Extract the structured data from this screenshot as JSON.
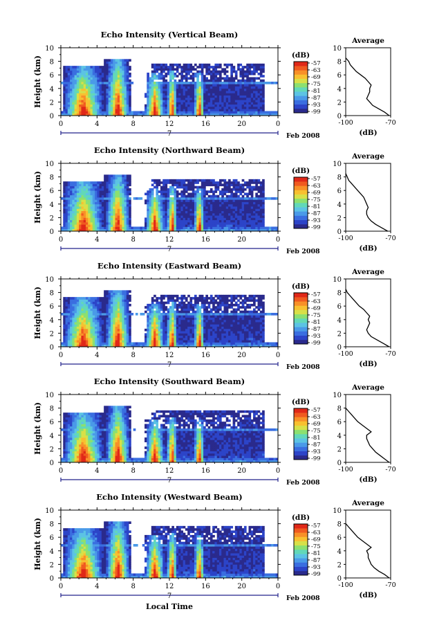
{
  "footer_label": "Local Time",
  "date_label": "Feb 2008",
  "day_label": "7",
  "colors": {
    "scale": [
      "#2a2a8c",
      "#2c44c8",
      "#3a6ee0",
      "#4a9ae8",
      "#5cc3e4",
      "#62d8b8",
      "#8ce070",
      "#d8e048",
      "#f8c030",
      "#f89028",
      "#f05a20",
      "#e02818"
    ]
  },
  "chart_data": [
    {
      "type": "heatmap",
      "title": "Echo Intensity (Vertical Beam)",
      "ylabel": "Height (km)",
      "ylim": [
        0,
        10
      ],
      "yticks": [
        "0",
        "2",
        "4",
        "6",
        "8",
        "10"
      ],
      "xlim": [
        0,
        24
      ],
      "xticks": [
        "0",
        "4",
        "8",
        "12",
        "16",
        "20",
        "0"
      ],
      "colorbar_label": "(dB)",
      "colorbar_ticks": [
        "-57",
        "-63",
        "-69",
        "-75",
        "-81",
        "-87",
        "-93",
        "-99"
      ],
      "profile": {
        "title": "Average",
        "xlabel": "(dB)",
        "xticks": [
          "-100",
          "-70"
        ],
        "xlim": [
          -100,
          -70
        ],
        "heights": [
          0,
          0.5,
          1,
          1.5,
          2,
          2.5,
          3,
          3.5,
          4,
          4.5,
          5,
          5.5,
          6,
          6.5,
          7,
          7.5,
          8,
          8.5
        ],
        "values": [
          -71,
          -74,
          -78,
          -82,
          -84,
          -86,
          -85,
          -84,
          -84,
          -83,
          -85,
          -87,
          -90,
          -93,
          -95,
          -97,
          -98,
          -100
        ]
      }
    },
    {
      "type": "heatmap",
      "title": "Echo Intensity (Northward Beam)",
      "ylabel": "Height (km)",
      "ylim": [
        0,
        10
      ],
      "yticks": [
        "0",
        "2",
        "4",
        "6",
        "8",
        "10"
      ],
      "xlim": [
        0,
        24
      ],
      "xticks": [
        "0",
        "4",
        "8",
        "12",
        "16",
        "20",
        "0"
      ],
      "colorbar_label": "(dB)",
      "colorbar_ticks": [
        "-57",
        "-63",
        "-69",
        "-75",
        "-81",
        "-87",
        "-93",
        "-99"
      ],
      "profile": {
        "title": "Average",
        "xlabel": "(dB)",
        "xticks": [
          "-100",
          "-70"
        ],
        "xlim": [
          -100,
          -70
        ],
        "heights": [
          0,
          0.5,
          1,
          1.5,
          2,
          2.5,
          3,
          3.5,
          4,
          4.5,
          5,
          5.5,
          6,
          6.5,
          7,
          7.5,
          8,
          8.5
        ],
        "values": [
          -72,
          -76,
          -80,
          -83,
          -85,
          -86,
          -86,
          -85,
          -86,
          -87,
          -88,
          -90,
          -92,
          -94,
          -96,
          -98,
          -99,
          -100
        ]
      }
    },
    {
      "type": "heatmap",
      "title": "Echo Intensity (Eastward Beam)",
      "ylabel": "Height (km)",
      "ylim": [
        0,
        10
      ],
      "yticks": [
        "0",
        "2",
        "4",
        "6",
        "8",
        "10"
      ],
      "xlim": [
        0,
        24
      ],
      "xticks": [
        "0",
        "4",
        "8",
        "12",
        "16",
        "20",
        "0"
      ],
      "colorbar_label": "(dB)",
      "colorbar_ticks": [
        "-57",
        "-63",
        "-69",
        "-75",
        "-81",
        "-87",
        "-93",
        "-99"
      ],
      "profile": {
        "title": "Average",
        "xlabel": "(dB)",
        "xticks": [
          "-100",
          "-70"
        ],
        "xlim": [
          -100,
          -70
        ],
        "heights": [
          0,
          0.5,
          1,
          1.5,
          2,
          2.5,
          3,
          3.5,
          4,
          4.5,
          5,
          5.5,
          6,
          6.5,
          7,
          7.5,
          8,
          8.5
        ],
        "values": [
          -71,
          -75,
          -79,
          -83,
          -85,
          -86,
          -85,
          -84,
          -85,
          -84,
          -86,
          -88,
          -91,
          -93,
          -95,
          -97,
          -99,
          -100
        ]
      }
    },
    {
      "type": "heatmap",
      "title": "Echo Intensity (Southward Beam)",
      "ylabel": "Height (km)",
      "ylim": [
        0,
        10
      ],
      "yticks": [
        "0",
        "2",
        "4",
        "6",
        "8",
        "10"
      ],
      "xlim": [
        0,
        24
      ],
      "xticks": [
        "0",
        "4",
        "8",
        "12",
        "16",
        "20",
        "0"
      ],
      "colorbar_label": "(dB)",
      "colorbar_ticks": [
        "-57",
        "-63",
        "-69",
        "-75",
        "-81",
        "-87",
        "-93",
        "-99"
      ],
      "profile": {
        "title": "Average",
        "xlabel": "(dB)",
        "xticks": [
          "-100",
          "-70"
        ],
        "xlim": [
          -100,
          -70
        ],
        "heights": [
          0,
          0.5,
          1,
          1.5,
          2,
          2.5,
          3,
          3.5,
          4,
          4.5,
          5,
          5.5,
          6,
          6.5,
          7,
          7.5,
          8
        ],
        "values": [
          -71,
          -74,
          -77,
          -80,
          -82,
          -84,
          -85,
          -86,
          -86,
          -83,
          -86,
          -89,
          -92,
          -94,
          -96,
          -98,
          -100
        ]
      }
    },
    {
      "type": "heatmap",
      "title": "Echo Intensity (Westward Beam)",
      "ylabel": "Height (km)",
      "ylim": [
        0,
        10
      ],
      "yticks": [
        "0",
        "2",
        "4",
        "6",
        "8",
        "10"
      ],
      "xlim": [
        0,
        24
      ],
      "xticks": [
        "0",
        "4",
        "8",
        "12",
        "16",
        "20",
        "0"
      ],
      "colorbar_label": "(dB)",
      "colorbar_ticks": [
        "-57",
        "-63",
        "-69",
        "-75",
        "-81",
        "-87",
        "-93",
        "-99"
      ],
      "profile": {
        "title": "Average",
        "xlabel": "(dB)",
        "xticks": [
          "-100",
          "-70"
        ],
        "xlim": [
          -100,
          -70
        ],
        "heights": [
          0,
          0.5,
          1,
          1.5,
          2,
          2.5,
          3,
          3.5,
          4,
          4.5,
          5,
          5.5,
          6,
          6.5,
          7,
          7.5,
          8
        ],
        "values": [
          -71,
          -74,
          -78,
          -81,
          -83,
          -84,
          -85,
          -85,
          -86,
          -83,
          -86,
          -89,
          -92,
          -94,
          -96,
          -98,
          -100
        ]
      }
    }
  ]
}
